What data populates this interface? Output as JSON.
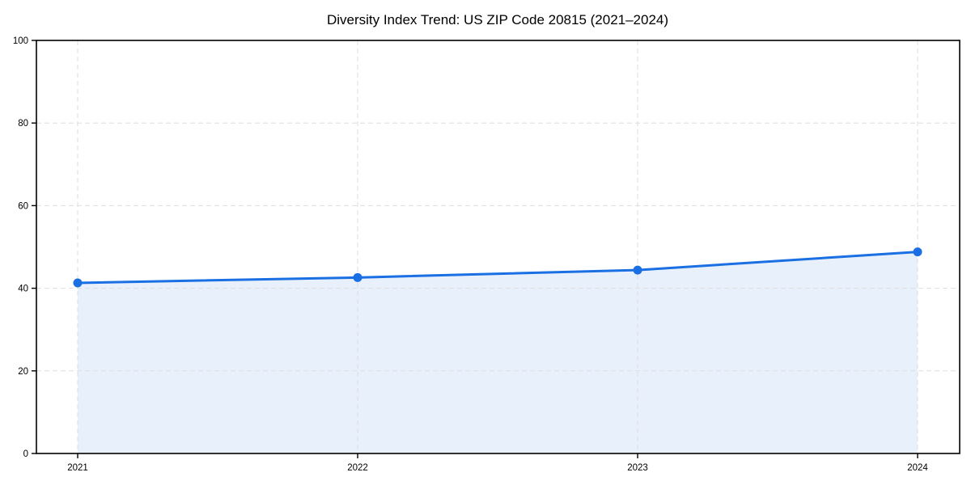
{
  "chart_data": {
    "type": "area",
    "title": "Diversity Index Trend: US ZIP Code 20815 (2021–2024)",
    "series": [
      {
        "name": "Diversity Index",
        "x": [
          2021,
          2022,
          2023,
          2024
        ],
        "values": [
          41.3,
          42.6,
          44.4,
          48.8
        ]
      }
    ],
    "xlabel": "",
    "ylabel": "",
    "xlim_categories": [
      2021,
      2024
    ],
    "ylim": [
      0,
      100
    ],
    "yticks": [
      0,
      20,
      40,
      60,
      80,
      100
    ],
    "xticks": [
      2021,
      2022,
      2023,
      2024
    ],
    "grid": true,
    "grid_style": "dashed",
    "legend": "none",
    "colors": {
      "line": "#1a6fe3",
      "marker": "#1a6fe3",
      "area_fill": "#e8f0fc",
      "grid": "#dedede",
      "axis": "#000000",
      "text": "#000000",
      "background": "#ffffff"
    }
  }
}
